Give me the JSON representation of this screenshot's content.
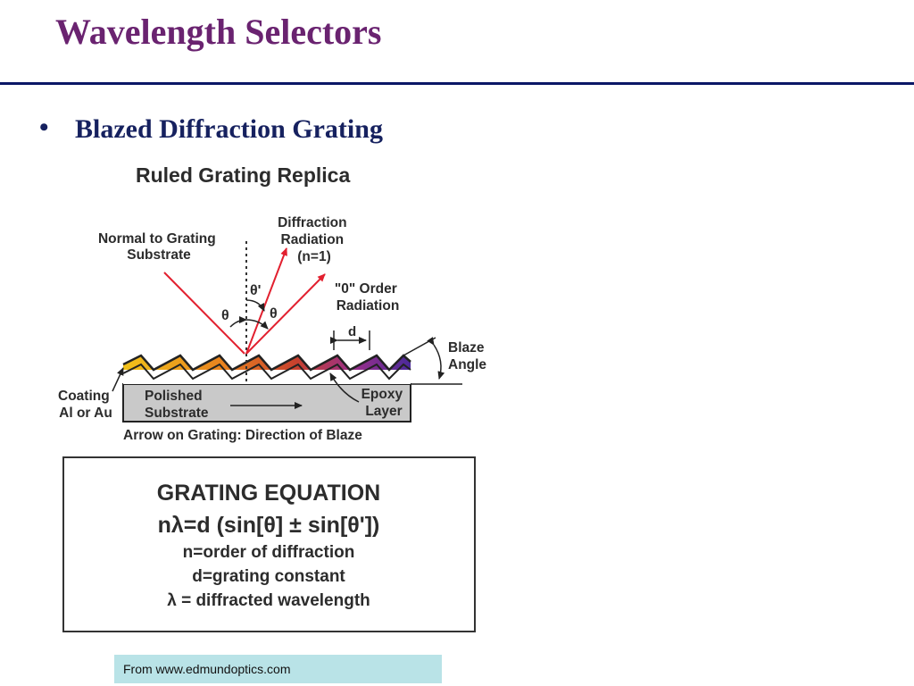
{
  "slide": {
    "title": "Wavelength Selectors",
    "bullet_marker": "•",
    "bullet_text": "Blazed Diffraction Grating"
  },
  "figure": {
    "heading": "Ruled Grating Replica",
    "normal_label": [
      "Normal to Grating",
      "Substrate"
    ],
    "diffraction_label": [
      "Diffraction",
      "Radiation",
      "(n=1)"
    ],
    "zero_order_label": [
      "\"0\" Order",
      "Radiation"
    ],
    "theta_prime": "θ'",
    "theta": "θ",
    "d_label": "d",
    "blaze_label": [
      "Blaze",
      "Angle"
    ],
    "coating_label": [
      "Coating",
      "Al or Au"
    ],
    "substrate_label": [
      "Polished",
      "Substrate"
    ],
    "epoxy_label": [
      "Epoxy",
      "Layer"
    ],
    "caption": "Arrow on Grating: Direction of Blaze",
    "ray_color": "#e2202f"
  },
  "equation_box": {
    "title": "GRATING EQUATION",
    "equation": "nλ=d (sin[θ] ± sin[θ'])",
    "line1": "n=order of diffraction",
    "line2": "d=grating constant",
    "line3": "λ = diffracted wavelength"
  },
  "source": "From www.edmundoptics.com"
}
